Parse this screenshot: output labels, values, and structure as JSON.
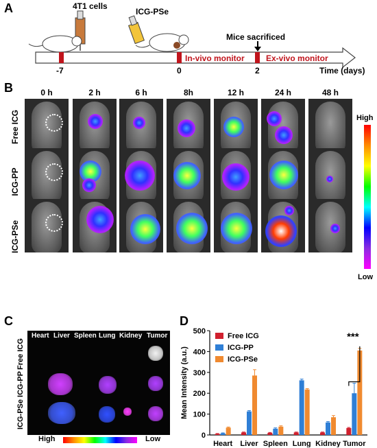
{
  "panelA": {
    "letter": "A",
    "cells_label": "4T1 cells",
    "drug_label": "ICG-PSe",
    "sacrifice_label": "Mice sacrificed",
    "ticks": [
      "-7",
      "0",
      "2"
    ],
    "invivo_label": "In-vivo monitor",
    "exvivo_label": "Ex-vivo monitor",
    "time_label": "Time (days)"
  },
  "panelB": {
    "letter": "B",
    "times": [
      "0 h",
      "2 h",
      "6 h",
      "8h",
      "12 h",
      "24 h",
      "48 h"
    ],
    "groups": [
      "Free ICG",
      "ICG-PP",
      "ICG-PSe"
    ],
    "scale_high": "High",
    "scale_low": "Low"
  },
  "panelC": {
    "letter": "C",
    "organs": [
      "Heart",
      "Liver",
      "Spleen",
      "Lung",
      "Kidney",
      "Tumor"
    ],
    "groups": [
      "Free ICG",
      "ICG-PP",
      "ICG-PSe"
    ],
    "scale_high": "High",
    "scale_low": "Low"
  },
  "panelD": {
    "letter": "D",
    "significance": "***"
  },
  "chart_data": {
    "type": "bar",
    "categories": [
      "Heart",
      "Liver",
      "Spleen",
      "Lung",
      "Kidney",
      "Tumor"
    ],
    "series": [
      {
        "name": "Free ICG",
        "values": [
          5,
          12,
          10,
          12,
          12,
          33
        ],
        "errors": [
          2,
          2,
          2,
          2,
          2,
          3
        ],
        "color": "#d0202e"
      },
      {
        "name": "ICG-PP",
        "values": [
          8,
          113,
          30,
          262,
          60,
          200
        ],
        "errors": [
          2,
          4,
          4,
          6,
          4,
          48
        ],
        "color": "#2f7fd6"
      },
      {
        "name": "ICG-PSe",
        "values": [
          35,
          285,
          40,
          218,
          85,
          405
        ],
        "errors": [
          3,
          28,
          4,
          4,
          8,
          10
        ],
        "color": "#f08a30"
      }
    ],
    "ylabel": "Mean Intensity (a.u.)",
    "ylim": [
      0,
      500
    ],
    "yticks": [
      0,
      100,
      200,
      300,
      400,
      500
    ],
    "legend": "top-left"
  }
}
